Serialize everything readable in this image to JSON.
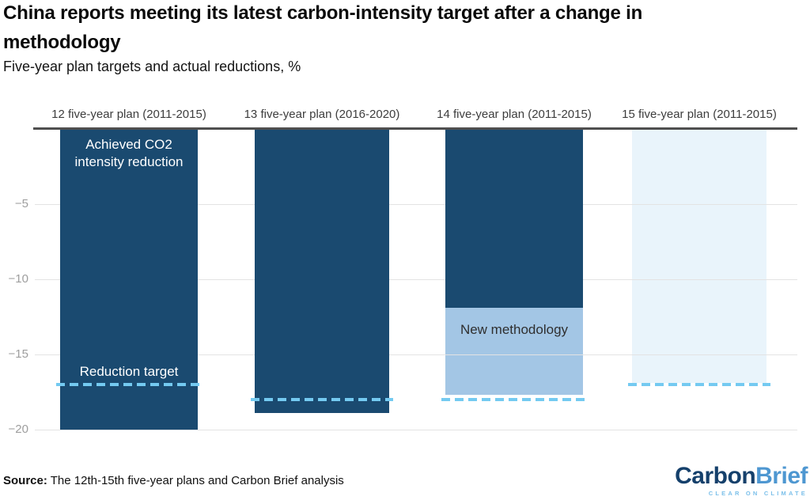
{
  "header": {
    "title": "China reports meeting its latest carbon-intensity target after a change in methodology",
    "subtitle": "Five-year plan targets and actual reductions, %"
  },
  "chart_data": {
    "type": "bar",
    "orientation": "vertical",
    "unit": "%",
    "ymax": 0,
    "ymin": -20.5,
    "yticks": [
      -5,
      -10,
      -15,
      -20
    ],
    "grid": "on",
    "categories": [
      "12 five-year plan (2011-2015)",
      "13 five-year plan (2016-2020)",
      "14 five-year plan (2011-2015)",
      "15 five-year plan (2011-2015)"
    ],
    "target_label": "Reduction target",
    "bars": [
      {
        "segments": [
          {
            "series": "Achieved CO2 intensity reduction",
            "color": "navy",
            "from": 0,
            "to": -20
          }
        ],
        "target": -17
      },
      {
        "segments": [
          {
            "series": "Achieved CO2 intensity reduction",
            "color": "navy",
            "from": 0,
            "to": -18.9
          }
        ],
        "target": -18
      },
      {
        "segments": [
          {
            "series": "Achieved CO2 intensity reduction",
            "color": "navy",
            "from": 0,
            "to": -11.9
          },
          {
            "series": "New methodology",
            "color": "light_blue",
            "from": -11.9,
            "to": -17.7
          }
        ],
        "target": -18
      },
      {
        "segments": [
          {
            "color": "pale_blue",
            "from": 0,
            "to": -16.9
          }
        ],
        "target": -17
      }
    ]
  },
  "annotations": {
    "achieved": "Achieved CO2 intensity reduction",
    "reduction_target": "Reduction target",
    "new_methodology": "New methodology"
  },
  "footer": {
    "source_label": "Source:",
    "source_text": " The 12th-15th five-year plans and Carbon Brief analysis"
  },
  "logo": {
    "part1": "Carbon",
    "part2": "Brief",
    "tagline": "CLEAR ON CLIMATE"
  },
  "colors": {
    "navy": "#1a4a70",
    "light_blue": "#a3c6e5",
    "pale_blue": "#e9f4fb",
    "dash": "#74caf1",
    "grid": "#e3e3e3",
    "axis": "#4f4f4f",
    "title_text": "#0a0a0a",
    "header_text": "#3d3d3d",
    "tick_text": "#9e9e9e",
    "logo_navy": "#15406b",
    "logo_blue": "#4e97d1",
    "logo_tagline": "#7cc0ea"
  }
}
